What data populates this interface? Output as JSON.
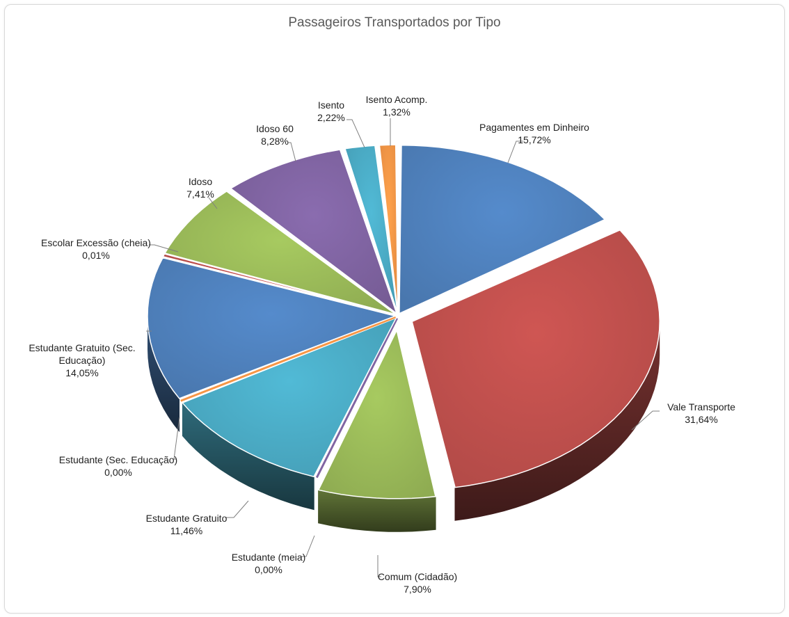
{
  "chart_data": {
    "type": "pie",
    "title": "Passageiros Transportados por Tipo",
    "legend": "none",
    "slices": [
      {
        "name": "Pagamentes em Dinheiro",
        "value": 15.72,
        "label": "15,72%",
        "color": "#4f81bd",
        "explode": 0
      },
      {
        "name": "Vale Transporte",
        "value": 31.64,
        "label": "31,64%",
        "color": "#c0504d",
        "explode": 1
      },
      {
        "name": "Comum (Cidadão)",
        "value": 7.9,
        "label": "7,90%",
        "color": "#9bbb59",
        "explode": 1
      },
      {
        "name": "Estudante (meia)",
        "value": 0.0,
        "label": "0,00%",
        "color": "#8064a2",
        "explode": 0
      },
      {
        "name": "Estudante Gratuito",
        "value": 11.46,
        "label": "11,46%",
        "color": "#4bacc6",
        "explode": 0
      },
      {
        "name": "Estudante (Sec. Educação)",
        "value": 0.0,
        "label": "0,00%",
        "color": "#f79646",
        "explode": 0
      },
      {
        "name": "Estudante Gratuito (Sec. Educação)",
        "value": 14.05,
        "label": "14,05%",
        "color": "#4f81bd",
        "explode": 0
      },
      {
        "name": "Escolar Excessão (cheia)",
        "value": 0.01,
        "label": "0,01%",
        "color": "#c0504d",
        "explode": 0
      },
      {
        "name": "Idoso",
        "value": 7.41,
        "label": "7,41%",
        "color": "#9bbb59",
        "explode": 0
      },
      {
        "name": "Idoso 60",
        "value": 8.28,
        "label": "8,28%",
        "color": "#8064a2",
        "explode": 0
      },
      {
        "name": "Isento",
        "value": 2.22,
        "label": "2,22%",
        "color": "#4bacc6",
        "explode": 0
      },
      {
        "name": "Isento Acomp.",
        "value": 1.32,
        "label": "1,32%",
        "color": "#f79646",
        "explode": 0
      }
    ]
  }
}
